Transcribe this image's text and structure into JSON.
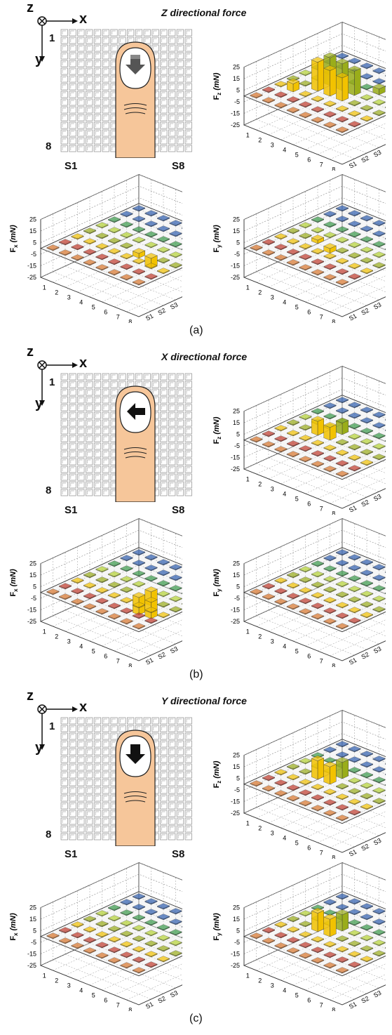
{
  "panels": [
    {
      "title": "Z directional force",
      "caption": "(a)",
      "axis_z": "z",
      "axis_x": "x",
      "axis_y": "y",
      "row_first": "1",
      "row_last": "8",
      "col_first": "S1",
      "col_last": "S8",
      "arrow_direction": "down-into-page",
      "plots": {
        "fz": {
          "sym": "F",
          "sub": "z",
          "unit": "(mN)"
        },
        "fx": {
          "sym": "F",
          "sub": "x",
          "unit": "(mN)"
        },
        "fy": {
          "sym": "F",
          "sub": "y",
          "unit": "(mN)"
        }
      }
    },
    {
      "title": "X directional force",
      "caption": "(b)",
      "axis_z": "z",
      "axis_x": "x",
      "axis_y": "y",
      "row_first": "1",
      "row_last": "8",
      "col_first": "S1",
      "col_last": "S8",
      "arrow_direction": "left",
      "plots": {
        "fz": {
          "sym": "F",
          "sub": "z",
          "unit": "(mN)"
        },
        "fx": {
          "sym": "F",
          "sub": "x",
          "unit": "(mN)"
        },
        "fy": {
          "sym": "F",
          "sub": "y",
          "unit": "(mN)"
        }
      }
    },
    {
      "title": "Y directional force",
      "caption": "(c)",
      "axis_z": "z",
      "axis_x": "x",
      "axis_y": "y",
      "row_first": "1",
      "row_last": "8",
      "col_first": "S1",
      "col_last": "S8",
      "arrow_direction": "down",
      "plots": {
        "fz": {
          "sym": "F",
          "sub": "z",
          "unit": "(mN)"
        },
        "fx": {
          "sym": "F",
          "sub": "x",
          "unit": "(mN)"
        },
        "fy": {
          "sym": "F",
          "sub": "y",
          "unit": "(mN)"
        }
      }
    }
  ],
  "z_ticks": [
    "25",
    "15",
    "5",
    "-5",
    "-15",
    "-25"
  ],
  "row_ticks": [
    "1",
    "2",
    "3",
    "4",
    "5",
    "6",
    "7",
    "8"
  ],
  "col_ticks": [
    "S1",
    "S2",
    "S3",
    "S4",
    "S5",
    "S6",
    "S7",
    "S8"
  ],
  "colors": {
    "yellow": "#f2c200",
    "olive": "#9aad1a",
    "lime": "#b5d334",
    "green": "#3a9a4a",
    "blue": "#2f5fb0",
    "orange": "#d9752b",
    "red": "#c0392b",
    "finger": "#f6c69a",
    "grid_cell": "#cfcfcf"
  },
  "chart_data": [
    {
      "type": "bar3d",
      "panel": "a",
      "quantity": "Fz",
      "ylabel": "Fz (mN)",
      "zlim": [
        -25,
        25
      ],
      "rows": [
        "1",
        "2",
        "3",
        "4",
        "5",
        "6",
        "7",
        "8"
      ],
      "cols": [
        "S1",
        "S2",
        "S3",
        "S4",
        "S5",
        "S6",
        "S7",
        "S8"
      ],
      "peak_values": [
        {
          "row": "3",
          "col": "S4",
          "value": 25
        },
        {
          "row": "3",
          "col": "S5",
          "value": 24
        },
        {
          "row": "4",
          "col": "S4",
          "value": 22
        },
        {
          "row": "4",
          "col": "S5",
          "value": 23
        },
        {
          "row": "5",
          "col": "S4",
          "value": 20
        },
        {
          "row": "5",
          "col": "S5",
          "value": 21
        },
        {
          "row": "2",
          "col": "S3",
          "value": 7
        },
        {
          "row": "6",
          "col": "S6",
          "value": 5
        }
      ]
    },
    {
      "type": "bar3d",
      "panel": "a",
      "quantity": "Fx",
      "ylabel": "Fx (mN)",
      "zlim": [
        -25,
        25
      ],
      "rows": [
        "1",
        "2",
        "3",
        "4",
        "5",
        "6",
        "7",
        "8"
      ],
      "cols": [
        "S1",
        "S2",
        "S3",
        "S4",
        "S5",
        "S6",
        "S7",
        "S8"
      ],
      "peak_values": [
        {
          "row": "6",
          "col": "S4",
          "value": -8
        },
        {
          "row": "5",
          "col": "S4",
          "value": -4
        }
      ]
    },
    {
      "type": "bar3d",
      "panel": "a",
      "quantity": "Fy",
      "ylabel": "Fy (mN)",
      "zlim": [
        -25,
        25
      ],
      "rows": [
        "1",
        "2",
        "3",
        "4",
        "5",
        "6",
        "7",
        "8"
      ],
      "cols": [
        "S1",
        "S2",
        "S3",
        "S4",
        "S5",
        "S6",
        "S7",
        "S8"
      ],
      "peak_values": [
        {
          "row": "4",
          "col": "S4",
          "value": -4
        },
        {
          "row": "3",
          "col": "S4",
          "value": 3
        }
      ]
    },
    {
      "type": "bar3d",
      "panel": "b",
      "quantity": "Fz",
      "ylabel": "Fz (mN)",
      "zlim": [
        -25,
        25
      ],
      "rows": [
        "1",
        "2",
        "3",
        "4",
        "5",
        "6",
        "7",
        "8"
      ],
      "cols": [
        "S1",
        "S2",
        "S3",
        "S4",
        "S5",
        "S6",
        "S7",
        "S8"
      ],
      "peak_values": [
        {
          "row": "3",
          "col": "S4",
          "value": 12
        },
        {
          "row": "4",
          "col": "S4",
          "value": 11
        },
        {
          "row": "4",
          "col": "S5",
          "value": 10
        }
      ]
    },
    {
      "type": "bar3d",
      "panel": "b",
      "quantity": "Fx",
      "ylabel": "Fx (mN)",
      "zlim": [
        -25,
        25
      ],
      "rows": [
        "1",
        "2",
        "3",
        "4",
        "5",
        "6",
        "7",
        "8"
      ],
      "cols": [
        "S1",
        "S2",
        "S3",
        "S4",
        "S5",
        "S6",
        "S7",
        "S8"
      ],
      "peak_values": [
        {
          "row": "5",
          "col": "S4",
          "value": -15
        },
        {
          "row": "6",
          "col": "S4",
          "value": -14
        },
        {
          "row": "5",
          "col": "S5",
          "value": -12
        }
      ]
    },
    {
      "type": "bar3d",
      "panel": "b",
      "quantity": "Fy",
      "ylabel": "Fy (mN)",
      "zlim": [
        -25,
        25
      ],
      "rows": [
        "1",
        "2",
        "3",
        "4",
        "5",
        "6",
        "7",
        "8"
      ],
      "cols": [
        "S1",
        "S2",
        "S3",
        "S4",
        "S5",
        "S6",
        "S7",
        "S8"
      ],
      "peak_values": []
    },
    {
      "type": "bar3d",
      "panel": "c",
      "quantity": "Fz",
      "ylabel": "Fz (mN)",
      "zlim": [
        -25,
        25
      ],
      "rows": [
        "1",
        "2",
        "3",
        "4",
        "5",
        "6",
        "7",
        "8"
      ],
      "cols": [
        "S1",
        "S2",
        "S3",
        "S4",
        "S5",
        "S6",
        "S7",
        "S8"
      ],
      "peak_values": [
        {
          "row": "3",
          "col": "S4",
          "value": 16
        },
        {
          "row": "4",
          "col": "S4",
          "value": 15
        },
        {
          "row": "4",
          "col": "S5",
          "value": 14
        }
      ]
    },
    {
      "type": "bar3d",
      "panel": "c",
      "quantity": "Fx",
      "ylabel": "Fx (mN)",
      "zlim": [
        -25,
        25
      ],
      "rows": [
        "1",
        "2",
        "3",
        "4",
        "5",
        "6",
        "7",
        "8"
      ],
      "cols": [
        "S1",
        "S2",
        "S3",
        "S4",
        "S5",
        "S6",
        "S7",
        "S8"
      ],
      "peak_values": []
    },
    {
      "type": "bar3d",
      "panel": "c",
      "quantity": "Fy",
      "ylabel": "Fy (mN)",
      "zlim": [
        -25,
        25
      ],
      "rows": [
        "1",
        "2",
        "3",
        "4",
        "5",
        "6",
        "7",
        "8"
      ],
      "cols": [
        "S1",
        "S2",
        "S3",
        "S4",
        "S5",
        "S6",
        "S7",
        "S8"
      ],
      "peak_values": [
        {
          "row": "3",
          "col": "S4",
          "value": 16
        },
        {
          "row": "4",
          "col": "S4",
          "value": 15
        },
        {
          "row": "4",
          "col": "S5",
          "value": 14
        }
      ]
    }
  ]
}
